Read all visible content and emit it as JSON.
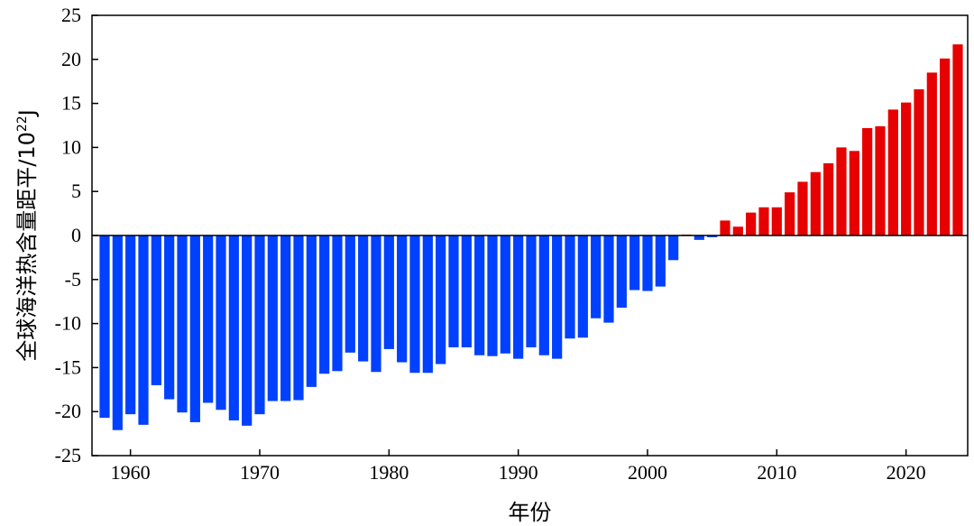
{
  "chart_data": {
    "type": "bar",
    "title": "",
    "xlabel": "年份",
    "ylabel": "全球海洋热含量距平/10²²J",
    "ylabel_parts": {
      "text": "全球海洋热含量距平/10",
      "exp": "22",
      "unit": "J"
    },
    "ylim": [
      -25,
      25
    ],
    "xlim": [
      1957,
      2025
    ],
    "yticks": [
      25,
      20,
      15,
      10,
      5,
      0,
      -5,
      -10,
      -15,
      -20,
      -25
    ],
    "xticks": [
      1960,
      1970,
      1980,
      1990,
      2000,
      2010,
      2020
    ],
    "grid": false,
    "colors": {
      "negative": "#0040ff",
      "positive": "#e60000"
    },
    "x": [
      1958,
      1959,
      1960,
      1961,
      1962,
      1963,
      1964,
      1965,
      1966,
      1967,
      1968,
      1969,
      1970,
      1971,
      1972,
      1973,
      1974,
      1975,
      1976,
      1977,
      1978,
      1979,
      1980,
      1981,
      1982,
      1983,
      1984,
      1985,
      1986,
      1987,
      1988,
      1989,
      1990,
      1991,
      1992,
      1993,
      1994,
      1995,
      1996,
      1997,
      1998,
      1999,
      2000,
      2001,
      2002,
      2003,
      2004,
      2005,
      2006,
      2007,
      2008,
      2009,
      2010,
      2011,
      2012,
      2013,
      2014,
      2015,
      2016,
      2017,
      2018,
      2019,
      2020,
      2021,
      2022,
      2023,
      2024
    ],
    "values": [
      -20.7,
      -22.1,
      -20.3,
      -21.5,
      -17.0,
      -18.6,
      -20.1,
      -21.2,
      -19.0,
      -19.8,
      -21.0,
      -21.6,
      -20.3,
      -18.8,
      -18.8,
      -18.7,
      -17.2,
      -15.7,
      -15.4,
      -13.3,
      -14.3,
      -15.5,
      -12.9,
      -14.4,
      -15.6,
      -15.6,
      -14.6,
      -12.7,
      -12.7,
      -13.6,
      -13.7,
      -13.4,
      -14.0,
      -12.7,
      -13.6,
      -14.0,
      -11.7,
      -11.6,
      -9.4,
      -9.9,
      -8.2,
      -6.2,
      -6.3,
      -5.8,
      -2.8,
      0.1,
      -0.5,
      -0.2,
      1.7,
      1.0,
      2.6,
      3.2,
      3.2,
      4.9,
      6.1,
      7.2,
      8.2,
      10.0,
      9.6,
      12.2,
      12.4,
      14.3,
      15.1,
      16.6,
      18.5,
      20.1,
      21.7
    ]
  }
}
